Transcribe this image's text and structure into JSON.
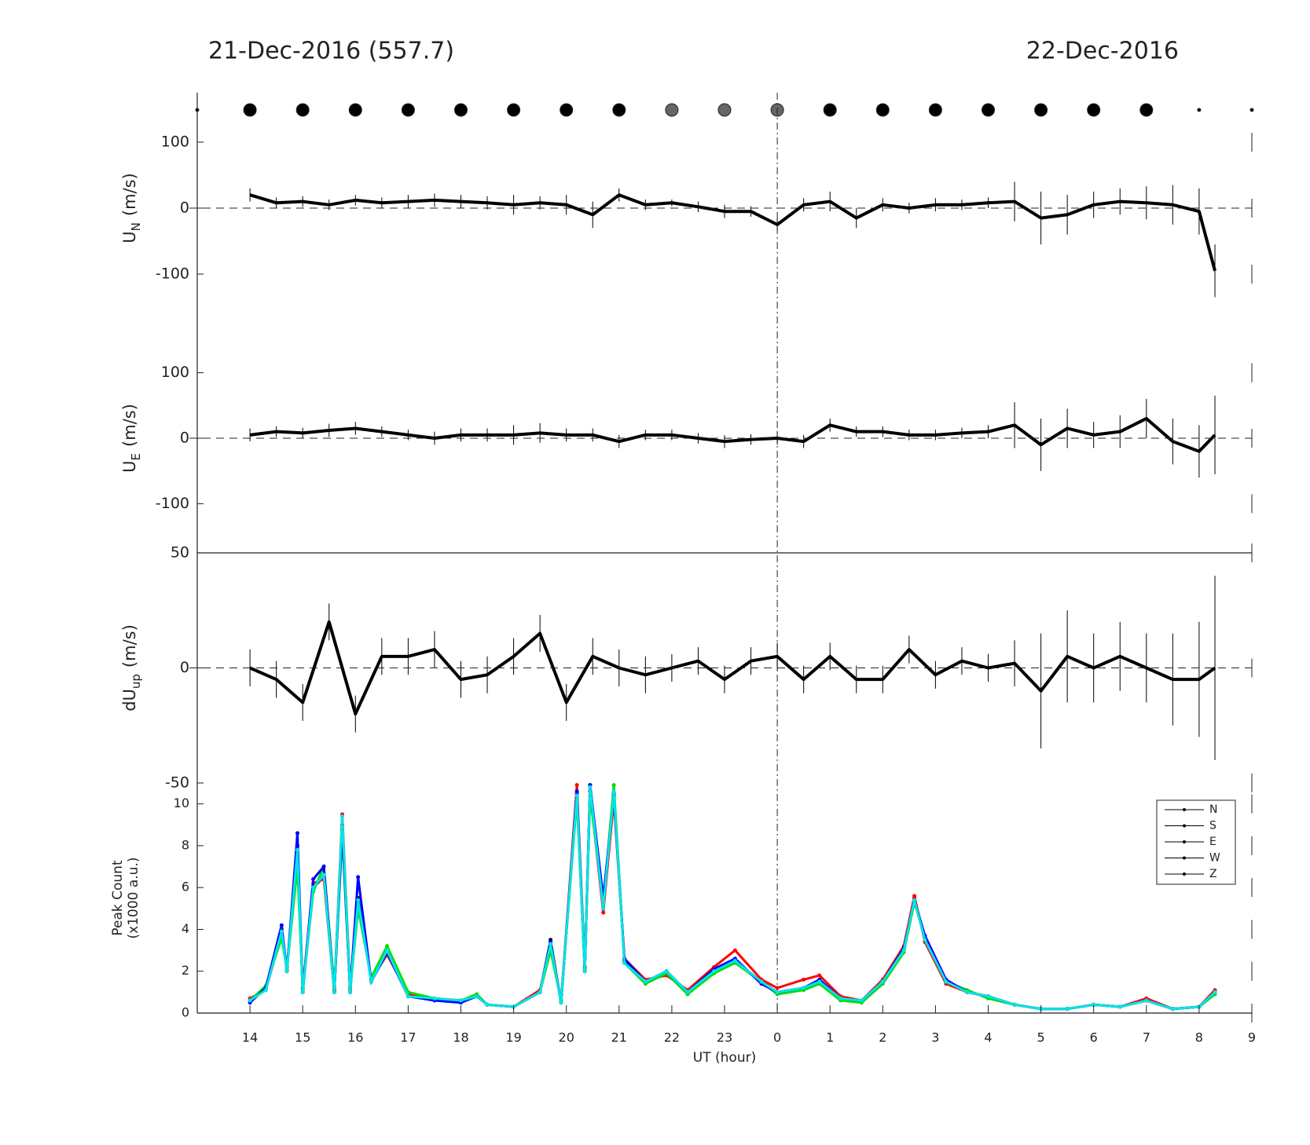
{
  "chart_data": [
    {
      "type": "errorbar",
      "title": "21-Dec-2016 (557.7)",
      "title_right": "22-Dec-2016",
      "ylabel": "U",
      "ylabel_sub": "N",
      "ylabel_unit": "(m/s)",
      "xlim": [
        13,
        33
      ],
      "ylim": [
        -175,
        175
      ],
      "yticks": [
        -100,
        0,
        100
      ],
      "zero_line": true,
      "vline": 24,
      "color": "#000000",
      "markers": {
        "x": [
          13,
          14,
          15,
          16,
          17,
          18,
          19,
          20,
          21,
          22,
          23,
          24,
          25,
          26,
          27,
          28,
          29,
          30,
          31,
          32,
          33
        ],
        "sizes": [
          2,
          8,
          8,
          8,
          8,
          8,
          8,
          8,
          8,
          8,
          8,
          8,
          8,
          8,
          8,
          8,
          8,
          8,
          8,
          2,
          2
        ],
        "colors": [
          "#000000",
          "#000000",
          "#000000",
          "#000000",
          "#000000",
          "#000000",
          "#000000",
          "#000000",
          "#000000",
          "#666666",
          "#666666",
          "#666666",
          "#000000",
          "#000000",
          "#000000",
          "#000000",
          "#000000",
          "#000000",
          "#000000",
          "#000000",
          "#000000"
        ]
      },
      "x": [
        14,
        14.5,
        15,
        15.5,
        16,
        16.5,
        17,
        17.5,
        18,
        18.5,
        19,
        19.5,
        20,
        20.5,
        21,
        21.5,
        22,
        22.5,
        23,
        23.5,
        24,
        24.5,
        25,
        25.5,
        26,
        26.5,
        27,
        27.5,
        28,
        28.5,
        29,
        29.5,
        30,
        30.5,
        31,
        31.5,
        32,
        32.3
      ],
      "values": [
        20,
        8,
        10,
        5,
        12,
        8,
        10,
        12,
        10,
        8,
        5,
        8,
        5,
        -10,
        20,
        5,
        8,
        2,
        -5,
        -5,
        -25,
        5,
        10,
        -15,
        5,
        0,
        5,
        5,
        8,
        10,
        -15,
        -10,
        5,
        10,
        8,
        5,
        -5,
        -95
      ],
      "errors": [
        10,
        8,
        8,
        8,
        8,
        8,
        10,
        10,
        10,
        10,
        15,
        10,
        15,
        20,
        10,
        8,
        5,
        8,
        10,
        8,
        10,
        10,
        15,
        15,
        10,
        8,
        10,
        8,
        8,
        30,
        40,
        30,
        20,
        20,
        25,
        30,
        35,
        40
      ]
    },
    {
      "type": "errorbar",
      "ylabel": "U",
      "ylabel_sub": "E",
      "ylabel_unit": "(m/s)",
      "xlim": [
        13,
        33
      ],
      "ylim": [
        -175,
        175
      ],
      "yticks": [
        -100,
        0,
        100
      ],
      "zero_line": true,
      "color": "#000000",
      "x": [
        14,
        14.5,
        15,
        15.5,
        16,
        16.5,
        17,
        17.5,
        18,
        18.5,
        19,
        19.5,
        20,
        20.5,
        21,
        21.5,
        22,
        22.5,
        23,
        23.5,
        24,
        24.5,
        25,
        25.5,
        26,
        26.5,
        27,
        27.5,
        28,
        28.5,
        29,
        29.5,
        30,
        30.5,
        31,
        31.5,
        32,
        32.3
      ],
      "values": [
        5,
        10,
        8,
        12,
        15,
        10,
        5,
        0,
        5,
        5,
        5,
        8,
        5,
        5,
        -5,
        5,
        5,
        0,
        -5,
        -2,
        0,
        -5,
        20,
        10,
        10,
        5,
        5,
        8,
        10,
        20,
        -10,
        15,
        5,
        10,
        30,
        -5,
        -20,
        5
      ],
      "errors": [
        10,
        8,
        8,
        10,
        10,
        8,
        8,
        10,
        10,
        10,
        15,
        15,
        10,
        10,
        10,
        8,
        8,
        8,
        10,
        8,
        10,
        10,
        10,
        8,
        8,
        8,
        8,
        8,
        10,
        35,
        40,
        30,
        20,
        25,
        30,
        35,
        40,
        60
      ]
    },
    {
      "type": "errorbar",
      "ylabel": "dU",
      "ylabel_sub": "up",
      "ylabel_unit": "(m/s)",
      "xlim": [
        13,
        33
      ],
      "ylim": [
        -50,
        50
      ],
      "yticks": [
        -50,
        0,
        50
      ],
      "zero_line": true,
      "color": "#000000",
      "x": [
        14,
        14.5,
        15,
        15.5,
        16,
        16.5,
        17,
        17.5,
        18,
        18.5,
        19,
        19.5,
        20,
        20.5,
        21,
        21.5,
        22,
        22.5,
        23,
        23.5,
        24,
        24.5,
        25,
        25.5,
        26,
        26.5,
        27,
        27.5,
        28,
        28.5,
        29,
        29.5,
        30,
        30.5,
        31,
        31.5,
        32,
        32.3
      ],
      "values": [
        0,
        -5,
        -15,
        20,
        -20,
        5,
        5,
        8,
        -5,
        -3,
        5,
        15,
        -15,
        5,
        0,
        -3,
        0,
        3,
        -5,
        3,
        5,
        -5,
        5,
        -5,
        -5,
        8,
        -3,
        3,
        0,
        2,
        -10,
        5,
        0,
        5,
        0,
        -5,
        -5,
        0
      ],
      "errors": [
        8,
        8,
        8,
        8,
        8,
        8,
        8,
        8,
        8,
        8,
        8,
        8,
        8,
        8,
        8,
        8,
        6,
        6,
        6,
        6,
        6,
        6,
        6,
        6,
        6,
        6,
        6,
        6,
        6,
        10,
        25,
        20,
        15,
        15,
        15,
        20,
        25,
        40
      ]
    },
    {
      "type": "line",
      "ylabel": "Peak Count",
      "ylabel2": "(x1000 a.u.)",
      "xlim": [
        13,
        33
      ],
      "ylim": [
        0,
        11
      ],
      "yticks": [
        0,
        2,
        4,
        6,
        8,
        10
      ],
      "xlabel": "UT (hour)",
      "xticks": [
        14,
        15,
        16,
        17,
        18,
        19,
        20,
        21,
        22,
        23,
        {
          "value": 24,
          "label": "0"
        },
        {
          "value": 25,
          "label": "1"
        },
        {
          "value": 26,
          "label": "2"
        },
        {
          "value": 27,
          "label": "3"
        },
        {
          "value": 28,
          "label": "4"
        },
        {
          "value": 29,
          "label": "5"
        },
        {
          "value": 30,
          "label": "6"
        },
        {
          "value": 31,
          "label": "7"
        },
        {
          "value": 32,
          "label": "8"
        },
        {
          "value": 33,
          "label": "9"
        }
      ],
      "legend": "upper right",
      "legend_line_color": "#000000",
      "x": [
        14,
        14.3,
        14.6,
        14.7,
        14.9,
        15.0,
        15.2,
        15.4,
        15.6,
        15.75,
        15.9,
        16.05,
        16.3,
        16.6,
        17,
        17.5,
        18,
        18.3,
        18.5,
        19,
        19.5,
        19.7,
        19.9,
        20.2,
        20.35,
        20.45,
        20.7,
        20.9,
        21.1,
        21.5,
        21.9,
        22.3,
        22.8,
        23.2,
        23.7,
        24,
        24.5,
        24.8,
        25.2,
        25.6,
        26,
        26.4,
        26.6,
        26.8,
        27.2,
        27.6,
        28,
        28.5,
        29,
        29.5,
        30,
        30.5,
        31,
        31.5,
        32,
        32.3
      ],
      "series": [
        {
          "name": "N",
          "color": "#000000",
          "values": [
            0.6,
            1.2,
            4,
            2,
            8,
            1,
            6,
            6.5,
            1,
            9,
            1,
            5.5,
            1.5,
            3,
            0.8,
            0.7,
            0.6,
            0.8,
            0.4,
            0.3,
            1,
            3.5,
            0.5,
            10.5,
            2,
            10.9,
            5,
            10.5,
            2.5,
            1.5,
            2,
            1,
            2,
            2.5,
            1.5,
            1,
            1.2,
            1.5,
            0.7,
            0.6,
            1.5,
            3,
            5.5,
            3.5,
            1.5,
            1,
            0.8,
            0.4,
            0.2,
            0.2,
            0.4,
            0.3,
            0.6,
            0.2,
            0.3,
            1
          ]
        },
        {
          "name": "S",
          "color": "#ff0000",
          "values": [
            0.7,
            1.1,
            3.8,
            2.2,
            7.5,
            1.2,
            6.2,
            6.4,
            1.1,
            9.5,
            1.2,
            5.2,
            1.6,
            2.8,
            0.9,
            0.7,
            0.6,
            0.8,
            0.4,
            0.3,
            1.1,
            3.2,
            0.5,
            10.9,
            2.2,
            10.6,
            4.8,
            10.2,
            2.6,
            1.6,
            1.8,
            1.1,
            2.2,
            3,
            1.6,
            1.2,
            1.6,
            1.8,
            0.8,
            0.6,
            1.6,
            3.2,
            5.6,
            3.4,
            1.4,
            1,
            0.8,
            0.4,
            0.2,
            0.2,
            0.4,
            0.3,
            0.7,
            0.2,
            0.3,
            1.1
          ]
        },
        {
          "name": "E",
          "color": "#00dd00",
          "values": [
            0.6,
            1.3,
            3.6,
            2.1,
            7,
            1.1,
            5.8,
            7,
            1.2,
            8.5,
            1.1,
            5,
            1.7,
            3.2,
            1,
            0.7,
            0.6,
            0.9,
            0.4,
            0.3,
            1,
            3,
            0.6,
            10.2,
            2.1,
            10.4,
            5.2,
            10.9,
            2.4,
            1.4,
            1.9,
            0.9,
            1.9,
            2.4,
            1.5,
            0.9,
            1.1,
            1.4,
            0.6,
            0.5,
            1.4,
            2.9,
            5.3,
            3.6,
            1.5,
            1.1,
            0.7,
            0.4,
            0.2,
            0.2,
            0.4,
            0.3,
            0.6,
            0.2,
            0.3,
            0.9
          ]
        },
        {
          "name": "W",
          "color": "#0000ff",
          "values": [
            0.5,
            1.2,
            4.2,
            2,
            8.6,
            1,
            6.4,
            7,
            1,
            8.8,
            1,
            6.5,
            1.5,
            2.9,
            0.8,
            0.6,
            0.5,
            0.8,
            0.4,
            0.3,
            1,
            3.4,
            0.5,
            10.6,
            2,
            10.9,
            5.5,
            10.4,
            2.6,
            1.5,
            2,
            1,
            2.1,
            2.6,
            1.4,
            1,
            1.2,
            1.6,
            0.7,
            0.6,
            1.5,
            3.1,
            5.4,
            3.7,
            1.6,
            1,
            0.8,
            0.4,
            0.2,
            0.2,
            0.4,
            0.3,
            0.6,
            0.2,
            0.3,
            1
          ]
        },
        {
          "name": "Z",
          "color": "#00e5e5",
          "values": [
            0.6,
            1.1,
            3.9,
            2,
            7.8,
            1,
            6,
            6.6,
            1,
            9.4,
            1,
            5.4,
            1.5,
            3,
            0.8,
            0.7,
            0.6,
            0.8,
            0.4,
            0.3,
            1,
            3.3,
            0.5,
            10.4,
            2,
            10.8,
            5,
            10.6,
            2.4,
            1.5,
            2,
            1,
            2,
            2.5,
            1.5,
            1,
            1.2,
            1.5,
            0.7,
            0.6,
            1.5,
            3,
            5.4,
            3.5,
            1.5,
            1,
            0.8,
            0.4,
            0.2,
            0.2,
            0.4,
            0.3,
            0.6,
            0.2,
            0.3,
            1
          ]
        }
      ]
    }
  ]
}
